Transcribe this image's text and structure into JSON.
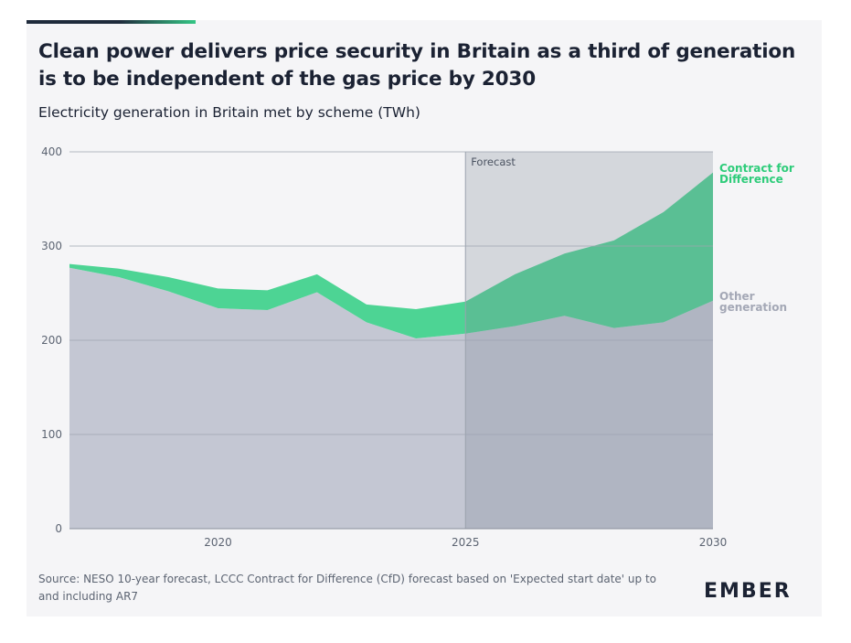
{
  "title": "Clean power delivers price security in Britain as a third of generation is to be independent of the gas price by 2030",
  "subtitle": "Electricity generation in Britain met by scheme (TWh)",
  "source": "Source: NESO 10-year forecast, LCCC Contract for Difference (CfD) forecast based on 'Expected start date' up to and including AR7",
  "brand": {
    "logo_text": "EMBER",
    "accent": "#34c685"
  },
  "colors": {
    "other_generation": "#c4c7d3",
    "contract_for_difference": "#4dd494",
    "cfd_label": "#2ecc7a",
    "other_label": "#a4a8b6",
    "forecast_shade": "#7f8a96"
  },
  "chart_data": {
    "type": "area",
    "stacked": true,
    "x": [
      2017,
      2018,
      2019,
      2020,
      2021,
      2022,
      2023,
      2024,
      2025,
      2026,
      2027,
      2028,
      2029,
      2030
    ],
    "series": [
      {
        "name": "Other generation",
        "label": "Other generation",
        "values": [
          277,
          267,
          252,
          234,
          232,
          251,
          219,
          202,
          207,
          215,
          226,
          213,
          219,
          242
        ]
      },
      {
        "name": "Contract for Difference",
        "label": "Contract for Difference",
        "values": [
          4,
          9,
          15,
          21,
          21,
          19,
          19,
          31,
          34,
          55,
          66,
          93,
          117,
          136
        ]
      }
    ],
    "xticks": [
      "2020",
      "2025",
      "2030"
    ],
    "ylim": [
      0,
      400
    ],
    "yticks": [
      "0",
      "100",
      "200",
      "300",
      "400"
    ],
    "grid": true,
    "forecast": {
      "label": "Forecast",
      "from": 2025,
      "to": 2030
    }
  }
}
